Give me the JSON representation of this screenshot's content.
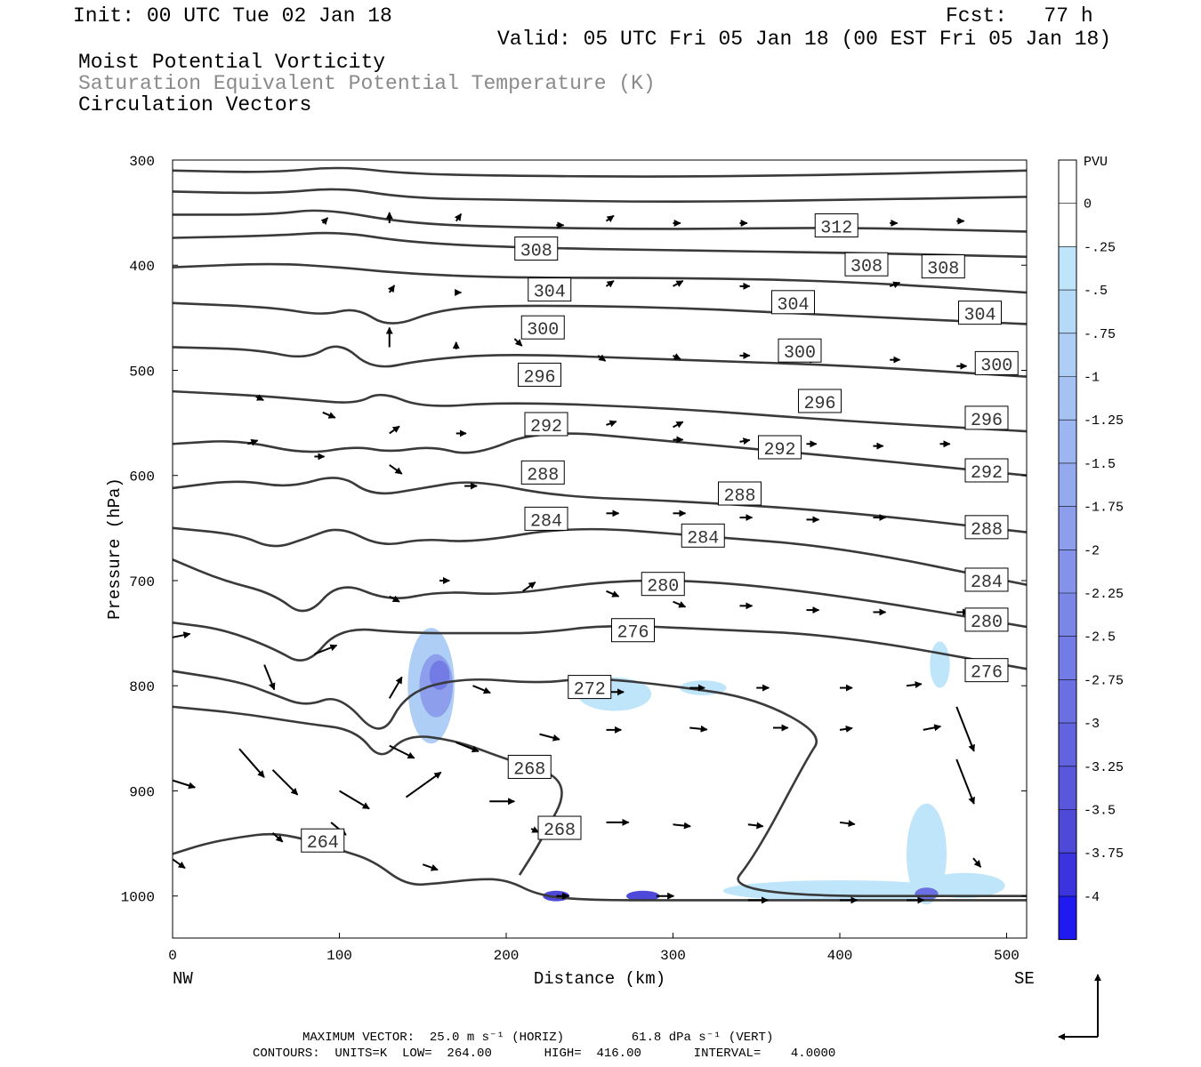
{
  "header": {
    "init": "Init: 00 UTC Tue 02 Jan 18",
    "fcst": "Fcst:   77 h",
    "valid": "Valid: 05 UTC Fri 05 Jan 18 (00 EST Fri 05 Jan 18)",
    "field1": "Moist Potential Vorticity",
    "field2": "Saturation Equivalent Potential Temperature (K)",
    "field3": "Circulation Vectors"
  },
  "footer": {
    "line1": "MAXIMUM VECTOR:  25.0 m s⁻¹ (HORIZ)         61.8 dPa s⁻¹ (VERT)",
    "line2": "CONTOURS:  UNITS=K  LOW=  264.00       HIGH=  416.00       INTERVAL=    4.0000"
  },
  "chart_data": {
    "type": "contour",
    "xlabel": "Distance (km)",
    "ylabel": "Pressure (hPa)",
    "xlim": [
      0,
      512
    ],
    "ylim": [
      1040,
      300
    ],
    "x_ticks": [
      0,
      100,
      200,
      300,
      400,
      500
    ],
    "y_ticks": [
      300,
      400,
      500,
      600,
      700,
      800,
      900,
      1000
    ],
    "x_end_labels": {
      "left": "NW",
      "right": "SE"
    },
    "colorbar": {
      "title": "PVU",
      "levels": [
        "0",
        "-.25",
        "-.5",
        "-.75",
        "-1",
        "-1.25",
        "-1.5",
        "-1.75",
        "-2",
        "-2.25",
        "-2.5",
        "-2.75",
        "-3",
        "-3.25",
        "-3.5",
        "-3.75",
        "-4"
      ],
      "colors": [
        "#ffffff",
        "#ffffff",
        "#bfe5fb",
        "#b6d9f8",
        "#aecef6",
        "#a6c2f3",
        "#9db6f1",
        "#95aaee",
        "#8c9eec",
        "#8493e9",
        "#7b87e7",
        "#737be4",
        "#6a70e2",
        "#6264df",
        "#5958dd",
        "#4f49da",
        "#3a33de",
        "#1f1af0"
      ]
    },
    "theta_es_contours": [
      {
        "label": "312",
        "points": [
          [
            0,
            310
          ],
          [
            60,
            312
          ],
          [
            100,
            306
          ],
          [
            140,
            313
          ],
          [
            200,
            315
          ],
          [
            300,
            316
          ],
          [
            400,
            314
          ],
          [
            512,
            310
          ]
        ]
      },
      {
        "label": "",
        "points": [
          [
            0,
            330
          ],
          [
            60,
            332
          ],
          [
            100,
            326
          ],
          [
            140,
            336
          ],
          [
            200,
            338
          ],
          [
            300,
            340
          ],
          [
            400,
            338
          ],
          [
            512,
            335
          ]
        ]
      },
      {
        "label": "312",
        "label_at": [
          398,
          363
        ],
        "points": [
          [
            0,
            352
          ],
          [
            60,
            352
          ],
          [
            90,
            346
          ],
          [
            140,
            360
          ],
          [
            200,
            364
          ],
          [
            300,
            366
          ],
          [
            400,
            364
          ],
          [
            512,
            368
          ]
        ]
      },
      {
        "label": "308",
        "label_at": [
          218,
          385
        ],
        "points": [
          [
            0,
            374
          ],
          [
            60,
            372
          ],
          [
            100,
            368
          ],
          [
            140,
            378
          ],
          [
            200,
            383
          ],
          [
            300,
            386
          ],
          [
            400,
            388
          ],
          [
            512,
            392
          ]
        ]
      },
      {
        "label": "308",
        "label_at": [
          416,
          400
        ],
        "label_at2": [
          462,
          402
        ],
        "points": [
          [
            0,
            402
          ],
          [
            60,
            398
          ],
          [
            100,
            402
          ],
          [
            140,
            408
          ],
          [
            200,
            412
          ],
          [
            300,
            412
          ],
          [
            400,
            415
          ],
          [
            512,
            426
          ]
        ]
      },
      {
        "label": "304",
        "label_at": [
          226,
          424
        ],
        "label_at2": [
          372,
          436
        ],
        "label_at3": [
          484,
          446
        ],
        "points": [
          [
            0,
            436
          ],
          [
            60,
            440
          ],
          [
            90,
            448
          ],
          [
            110,
            440
          ],
          [
            130,
            460
          ],
          [
            160,
            442
          ],
          [
            200,
            438
          ],
          [
            300,
            440
          ],
          [
            400,
            448
          ],
          [
            512,
            456
          ]
        ]
      },
      {
        "label": "300",
        "label_at": [
          222,
          460
        ],
        "label_at2": [
          376,
          482
        ],
        "label_at3": [
          494,
          494
        ],
        "points": [
          [
            0,
            478
          ],
          [
            50,
            480
          ],
          [
            80,
            490
          ],
          [
            100,
            472
          ],
          [
            120,
            500
          ],
          [
            150,
            490
          ],
          [
            200,
            484
          ],
          [
            300,
            490
          ],
          [
            400,
            495
          ],
          [
            512,
            506
          ]
        ]
      },
      {
        "label": "296",
        "label_at": [
          220,
          505
        ],
        "label_at2": [
          388,
          530
        ],
        "label_at3": [
          488,
          546
        ],
        "points": [
          [
            0,
            520
          ],
          [
            50,
            524
          ],
          [
            80,
            528
          ],
          [
            110,
            532
          ],
          [
            125,
            520
          ],
          [
            150,
            536
          ],
          [
            200,
            530
          ],
          [
            300,
            536
          ],
          [
            400,
            548
          ],
          [
            512,
            558
          ]
        ]
      },
      {
        "label": "292",
        "label_at": [
          224,
          552
        ],
        "label_at2": [
          364,
          574
        ],
        "label_at3": [
          488,
          596
        ],
        "points": [
          [
            0,
            570
          ],
          [
            40,
            566
          ],
          [
            80,
            580
          ],
          [
            110,
            572
          ],
          [
            130,
            578
          ],
          [
            155,
            572
          ],
          [
            180,
            582
          ],
          [
            220,
            556
          ],
          [
            300,
            568
          ],
          [
            400,
            582
          ],
          [
            512,
            600
          ]
        ]
      },
      {
        "label": "288",
        "label_at": [
          222,
          598
        ],
        "label_at2": [
          340,
          618
        ],
        "label_at3": [
          488,
          650
        ],
        "points": [
          [
            0,
            612
          ],
          [
            40,
            604
          ],
          [
            70,
            612
          ],
          [
            100,
            598
          ],
          [
            120,
            620
          ],
          [
            150,
            612
          ],
          [
            180,
            604
          ],
          [
            230,
            620
          ],
          [
            300,
            624
          ],
          [
            400,
            634
          ],
          [
            512,
            654
          ]
        ]
      },
      {
        "label": "284",
        "label_at": [
          224,
          642
        ],
        "label_at2": [
          318,
          658
        ],
        "label_at3": [
          488,
          700
        ],
        "points": [
          [
            0,
            650
          ],
          [
            40,
            656
          ],
          [
            60,
            670
          ],
          [
            80,
            660
          ],
          [
            100,
            648
          ],
          [
            125,
            668
          ],
          [
            150,
            660
          ],
          [
            180,
            664
          ],
          [
            240,
            648
          ],
          [
            320,
            658
          ],
          [
            400,
            668
          ],
          [
            512,
            704
          ]
        ]
      },
      {
        "label": "280",
        "label_at": [
          294,
          704
        ],
        "label_at2": [
          488,
          738
        ],
        "points": [
          [
            0,
            680
          ],
          [
            30,
            700
          ],
          [
            60,
            712
          ],
          [
            80,
            736
          ],
          [
            100,
            700
          ],
          [
            130,
            720
          ],
          [
            160,
            710
          ],
          [
            200,
            714
          ],
          [
            260,
            700
          ],
          [
            320,
            700
          ],
          [
            400,
            714
          ],
          [
            512,
            744
          ]
        ]
      },
      {
        "label": "276",
        "label_at": [
          276,
          748
        ],
        "label_at2": [
          488,
          786
        ],
        "points": [
          [
            0,
            740
          ],
          [
            30,
            746
          ],
          [
            60,
            764
          ],
          [
            80,
            782
          ],
          [
            100,
            744
          ],
          [
            140,
            750
          ],
          [
            190,
            750
          ],
          [
            220,
            750
          ],
          [
            260,
            742
          ],
          [
            320,
            746
          ],
          [
            400,
            752
          ],
          [
            512,
            784
          ]
        ]
      },
      {
        "label": "272",
        "label_at": [
          250,
          802
        ],
        "points": [
          [
            0,
            786
          ],
          [
            40,
            796
          ],
          [
            60,
            808
          ],
          [
            80,
            820
          ],
          [
            100,
            808
          ],
          [
            125,
            852
          ],
          [
            140,
            806
          ],
          [
            175,
            792
          ],
          [
            220,
            798
          ],
          [
            250,
            792
          ],
          [
            300,
            800
          ],
          [
            350,
            812
          ],
          [
            390,
            846
          ],
          [
            380,
            870
          ],
          [
            350,
            960
          ],
          [
            330,
            1000
          ],
          [
            512,
            1000
          ]
        ]
      },
      {
        "label": "268",
        "label_at": [
          214,
          878
        ],
        "label_at2": [
          232,
          936
        ],
        "points": [
          [
            0,
            820
          ],
          [
            40,
            826
          ],
          [
            80,
            836
          ],
          [
            110,
            842
          ],
          [
            125,
            872
          ],
          [
            140,
            846
          ],
          [
            170,
            852
          ],
          [
            200,
            870
          ],
          [
            240,
            890
          ],
          [
            220,
            950
          ],
          [
            208,
            980
          ]
        ]
      },
      {
        "label": "264",
        "label_at": [
          90,
          948
        ],
        "points": [
          [
            0,
            960
          ],
          [
            20,
            950
          ],
          [
            40,
            944
          ],
          [
            60,
            940
          ],
          [
            80,
            946
          ],
          [
            100,
            956
          ],
          [
            120,
            966
          ],
          [
            140,
            990
          ],
          [
            160,
            988
          ],
          [
            180,
            984
          ],
          [
            200,
            984
          ],
          [
            220,
            1000
          ],
          [
            250,
            1004
          ],
          [
            300,
            1004
          ],
          [
            512,
            1004
          ]
        ]
      }
    ],
    "max_vector": {
      "horiz": "25.0 m s⁻¹",
      "vert": "61.8 dPa s⁻¹"
    },
    "contour_settings": {
      "units": "K",
      "low": 264.0,
      "high": 416.0,
      "interval": 4.0
    }
  }
}
